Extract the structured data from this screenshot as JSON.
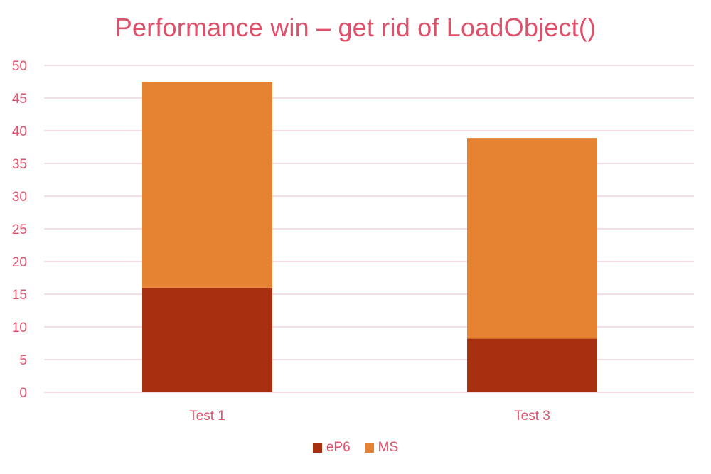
{
  "theme": {
    "text_color": "#e0506a",
    "grid_color": "#f2c9d3",
    "axis_color": "#f2c9d3",
    "series_colors": [
      "#a63010",
      "#e68332"
    ]
  },
  "chart_data": {
    "type": "bar",
    "stacked": true,
    "title": "Performance win – get rid of LoadObject()",
    "xlabel": "",
    "ylabel": "",
    "categories": [
      "Test 1",
      "Test 3"
    ],
    "series": [
      {
        "name": "eP6",
        "values": [
          16,
          8.2
        ]
      },
      {
        "name": "MS",
        "values": [
          31.5,
          30.7
        ]
      }
    ],
    "ylim": [
      0,
      50
    ],
    "yticks": [
      0,
      5,
      10,
      15,
      20,
      25,
      30,
      35,
      40,
      45,
      50
    ],
    "grid": true,
    "legend": "bottom"
  }
}
